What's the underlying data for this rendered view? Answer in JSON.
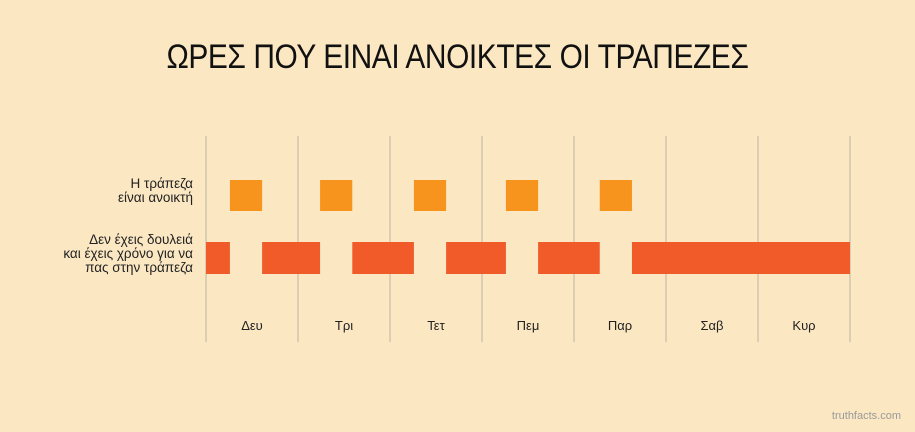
{
  "chart_data": {
    "type": "bar",
    "title": "ΩΡΕΣ ΠΟΥ ΕΙΝΑΙ ΑΝΟΙΚΤΕΣ ΟΙ ΤΡΑΠΕΖΕΣ",
    "categories": [
      "Δευ",
      "Τρι",
      "Τετ",
      "Πεμ",
      "Παρ",
      "Σαβ",
      "Κυρ"
    ],
    "xlim": [
      0,
      7
    ],
    "grid": true,
    "series": [
      {
        "name_lines": [
          "Η τράπεζα",
          "είναι ανοικτή"
        ],
        "color": "#f7941d",
        "segments": [
          [
            0.26,
            0.61
          ],
          [
            1.24,
            1.59
          ],
          [
            2.26,
            2.61
          ],
          [
            3.26,
            3.61
          ],
          [
            4.28,
            4.63
          ]
        ]
      },
      {
        "name_lines": [
          "Δεν έχεις δουλειά",
          "και έχεις χρόνο για να",
          "πας στην τράπεζα"
        ],
        "color": "#f15a29",
        "segments": [
          [
            0.0,
            0.26
          ],
          [
            0.61,
            1.24
          ],
          [
            1.59,
            2.26
          ],
          [
            2.61,
            3.26
          ],
          [
            3.61,
            4.28
          ],
          [
            4.63,
            7.0
          ]
        ]
      }
    ]
  },
  "credit": "truthfacts.com"
}
